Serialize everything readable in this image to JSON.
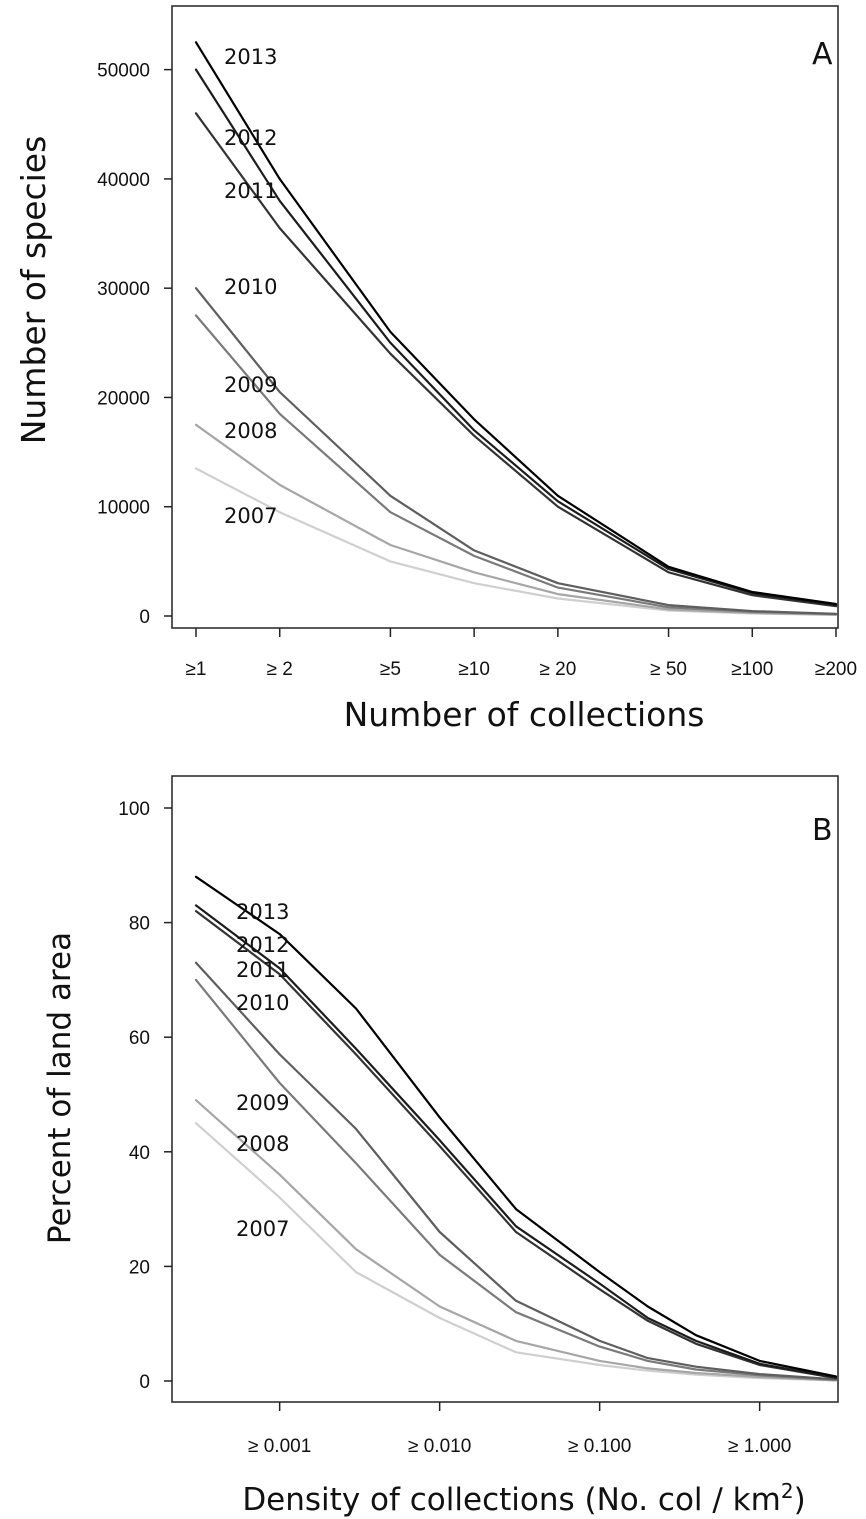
{
  "chart_data": [
    {
      "type": "line",
      "panel": "A",
      "xlabel": "Number of collections",
      "ylabel": "Number of species",
      "x_scale": "log",
      "x": [
        1,
        2,
        5,
        10,
        20,
        50,
        100,
        200
      ],
      "xtick_labels": [
        "≥1",
        "≥ 2",
        "≥5",
        "≥10",
        "≥ 20",
        "≥ 50",
        "≥100",
        "≥200"
      ],
      "ylim": [
        0,
        55000
      ],
      "yticks": [
        0,
        10000,
        20000,
        30000,
        40000,
        50000
      ],
      "ytick_labels": [
        "0",
        "10000",
        "20000",
        "30000",
        "40000",
        "50000"
      ],
      "series": [
        {
          "name": "2013",
          "values": [
            52500,
            40000,
            26000,
            18000,
            11000,
            4500,
            2200,
            1100
          ],
          "color": "#000000"
        },
        {
          "name": "2012",
          "values": [
            50000,
            38000,
            25000,
            17000,
            10500,
            4300,
            2100,
            1000
          ],
          "color": "#1c1c1c"
        },
        {
          "name": "2011",
          "values": [
            46000,
            35500,
            24000,
            16500,
            10000,
            4000,
            1900,
            900
          ],
          "color": "#333333"
        },
        {
          "name": "2010",
          "values": [
            30000,
            20500,
            11000,
            6000,
            3000,
            1000,
            450,
            200
          ],
          "color": "#5e5e5e"
        },
        {
          "name": "2009",
          "values": [
            27500,
            18500,
            9500,
            5500,
            2600,
            800,
            380,
            170
          ],
          "color": "#7a7a7a"
        },
        {
          "name": "2008",
          "values": [
            17500,
            12000,
            6500,
            4000,
            2000,
            600,
            280,
            120
          ],
          "color": "#a6a6a6"
        },
        {
          "name": "2007",
          "values": [
            13500,
            9500,
            5000,
            3000,
            1600,
            500,
            230,
            100
          ],
          "color": "#cfcfcf"
        }
      ]
    },
    {
      "type": "line",
      "panel": "B",
      "xlabel": "Density of collections (No. col / km",
      "xlabel_sup": "2",
      "xlabel_end": ")",
      "ylabel": "Percent of land area",
      "x_scale": "log",
      "x": [
        0.0003,
        0.001,
        0.003,
        0.01,
        0.03,
        0.1,
        0.2,
        0.4,
        1,
        3
      ],
      "xticks": [
        0.001,
        0.01,
        0.1,
        1
      ],
      "xtick_labels": [
        "≥ 0.001",
        "≥ 0.010",
        "≥ 0.100",
        "≥ 1.000"
      ],
      "ylim": [
        0,
        100
      ],
      "yticks": [
        0,
        20,
        40,
        60,
        80,
        100
      ],
      "ytick_labels": [
        "0",
        "20",
        "40",
        "60",
        "80",
        "100"
      ],
      "series": [
        {
          "name": "2013",
          "values": [
            88,
            78,
            65,
            46,
            30,
            19,
            13,
            8,
            3.5,
            0.8
          ],
          "color": "#000000"
        },
        {
          "name": "2012",
          "values": [
            83,
            72,
            58,
            42,
            27,
            17,
            11,
            7,
            3,
            0.6
          ],
          "color": "#1c1c1c"
        },
        {
          "name": "2011",
          "values": [
            82,
            71,
            57,
            41,
            26,
            16,
            10.5,
            6.5,
            2.8,
            0.5
          ],
          "color": "#333333"
        },
        {
          "name": "2010",
          "values": [
            73,
            57,
            44,
            26,
            14,
            7,
            4,
            2.5,
            1.2,
            0.3
          ],
          "color": "#5e5e5e"
        },
        {
          "name": "2009",
          "values": [
            70,
            52,
            38,
            22,
            12,
            6,
            3.5,
            2,
            1,
            0.2
          ],
          "color": "#7a7a7a"
        },
        {
          "name": "2008",
          "values": [
            49,
            36,
            23,
            13,
            7,
            3.5,
            2.2,
            1.4,
            0.7,
            0.1
          ],
          "color": "#a6a6a6"
        },
        {
          "name": "2007",
          "values": [
            45,
            32,
            19,
            11,
            5,
            2.8,
            1.8,
            1.1,
            0.5,
            0.1
          ],
          "color": "#cfcfcf"
        }
      ]
    }
  ]
}
